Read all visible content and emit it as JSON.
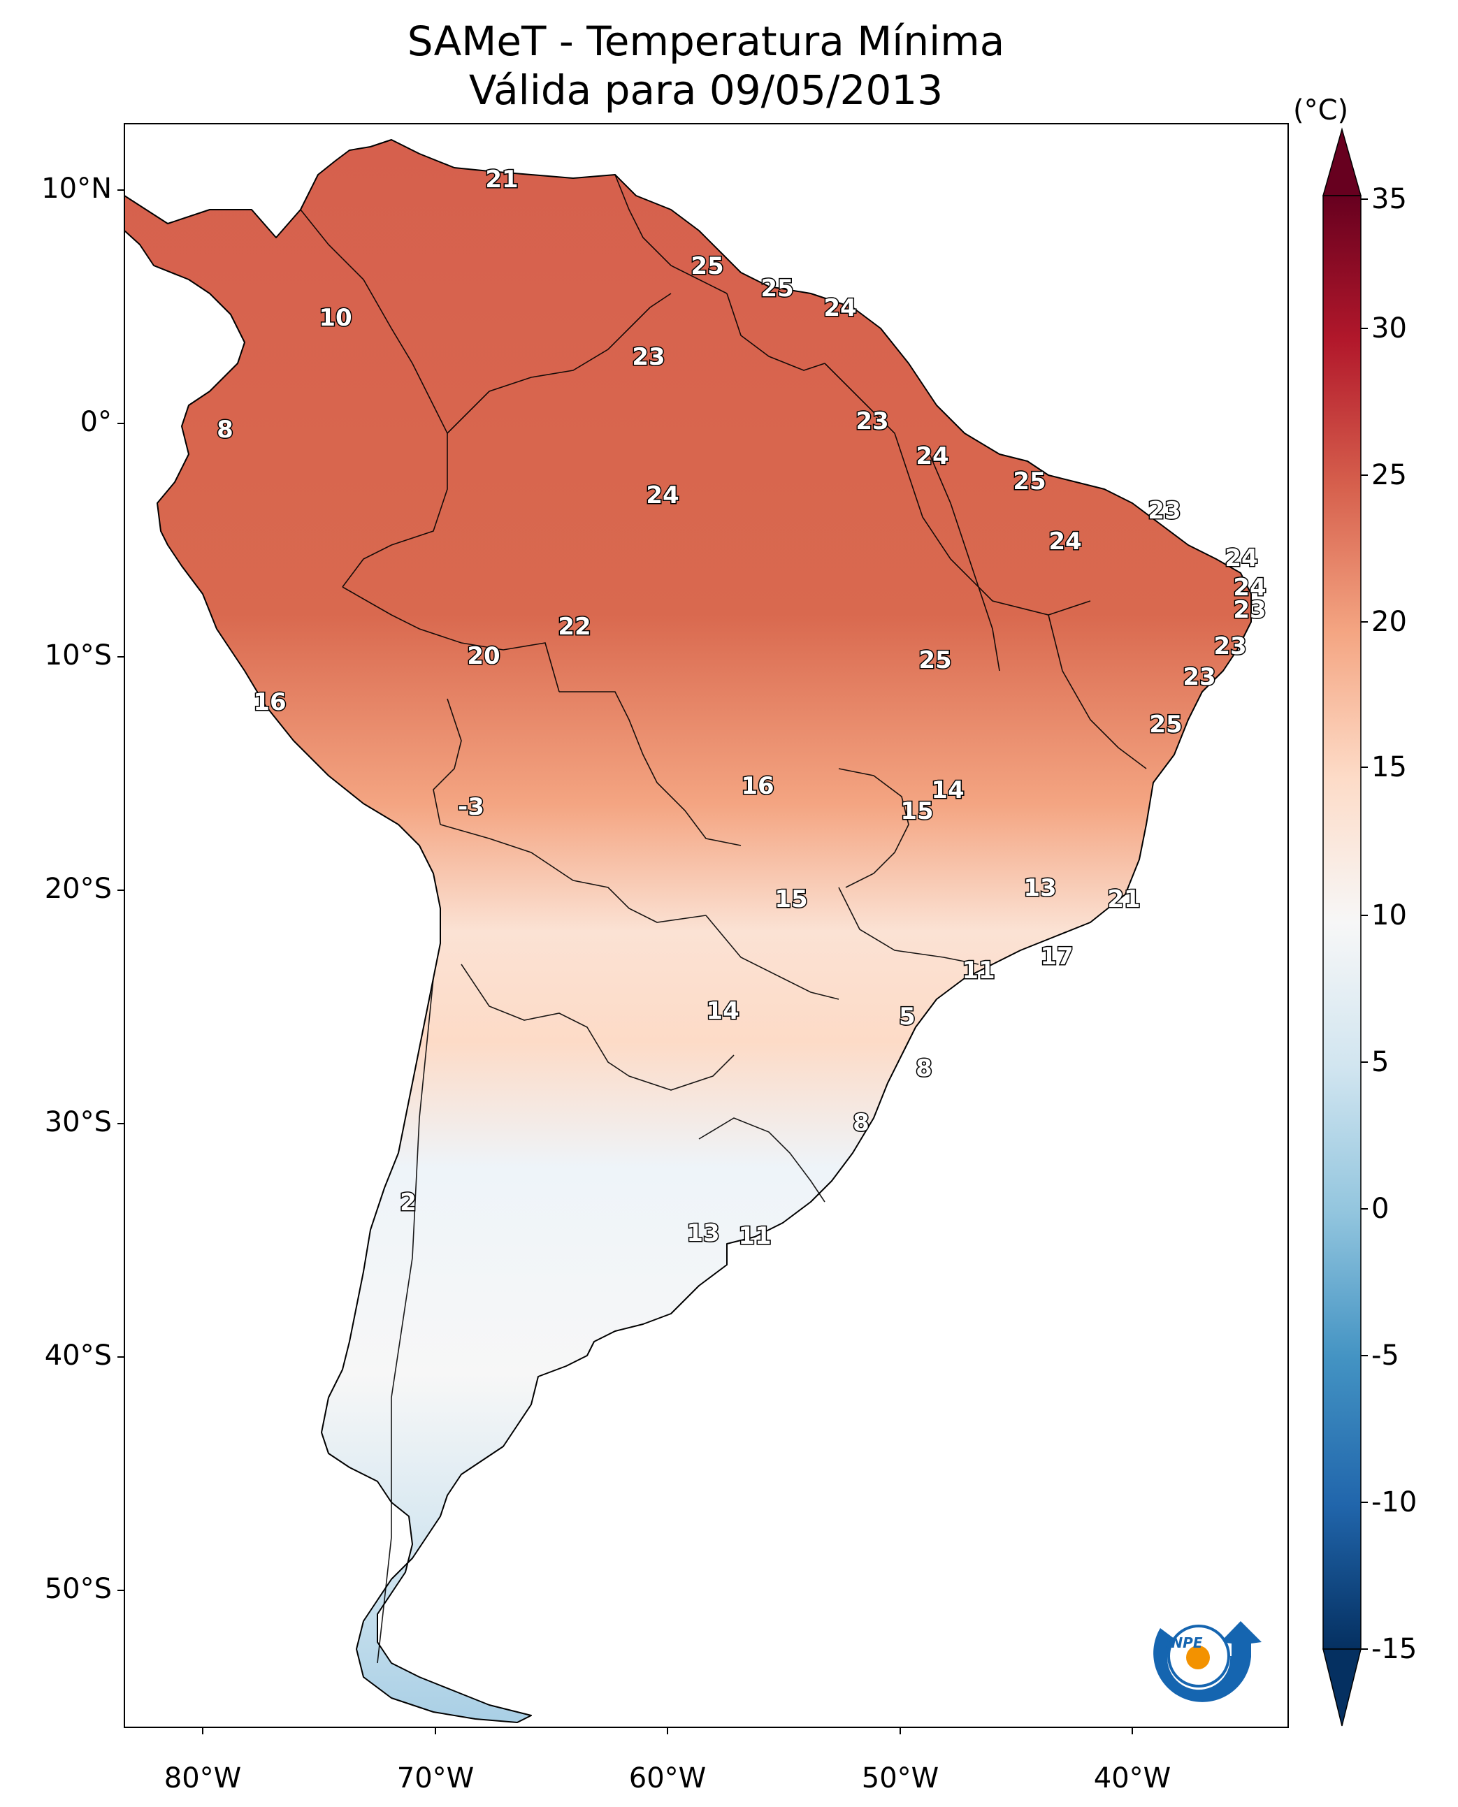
{
  "title": {
    "line1": "SAMeT - Temperatura Mínima",
    "line2": "Válida para 09/05/2013"
  },
  "axes": {
    "lat_labels": [
      "10°N",
      "0°",
      "10°S",
      "20°S",
      "30°S",
      "40°S",
      "50°S"
    ],
    "lon_labels": [
      "80°W",
      "70°W",
      "60°W",
      "50°W",
      "40°W"
    ]
  },
  "colorbar": {
    "unit": "(°C)",
    "ticks": [
      "35",
      "30",
      "25",
      "20",
      "15",
      "10",
      "5",
      "0",
      "-5",
      "-10",
      "-15"
    ],
    "range": [
      -15,
      35
    ],
    "colors": [
      "#053061",
      "#2166ac",
      "#4393c3",
      "#92c5de",
      "#d1e5f0",
      "#f7f7f7",
      "#fddbc7",
      "#f4a582",
      "#d6604d",
      "#b2182b",
      "#67001f"
    ]
  },
  "station_values": [
    "21",
    "25",
    "25",
    "24",
    "10",
    "23",
    "8",
    "23",
    "24",
    "24",
    "25",
    "23",
    "24",
    "24",
    "24",
    "23",
    "22",
    "20",
    "25",
    "23",
    "16",
    "23",
    "25",
    "16",
    "14",
    "15",
    "-3",
    "15",
    "13",
    "21",
    "11",
    "17",
    "14",
    "5",
    "8",
    "8",
    "2",
    "13",
    "11"
  ],
  "logo": {
    "text": "INPE",
    "colors": [
      "#1565b0",
      "#f39200"
    ]
  }
}
